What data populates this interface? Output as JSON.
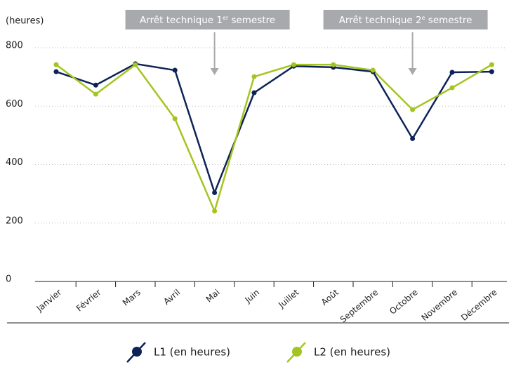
{
  "chart_data": {
    "type": "line",
    "y_label": "(heures)",
    "categories": [
      "Janvier",
      "Février",
      "Mars",
      "Avril",
      "Mai",
      "Juin",
      "Juillet",
      "Août",
      "Septembre",
      "Octobre",
      "Novembre",
      "Décembre"
    ],
    "series": [
      {
        "name": "L1 (en heures)",
        "color": "#0d2357",
        "values": [
          718,
          672,
          745,
          723,
          304,
          646,
          737,
          733,
          718,
          489,
          716,
          718
        ]
      },
      {
        "name": "L2 (en heures)",
        "color": "#a4c520",
        "values": [
          742,
          641,
          742,
          557,
          241,
          701,
          742,
          742,
          723,
          588,
          663,
          742
        ]
      }
    ],
    "ylim": [
      0,
      800
    ],
    "yticks": [
      0,
      200,
      400,
      600,
      800
    ],
    "grid": true,
    "annotations": [
      {
        "text": "Arrêt technique 1",
        "sup": "er",
        "rest": " semestre",
        "category": 4
      },
      {
        "text": "Arrêt technique 2",
        "sup": "e",
        "rest": " semestre",
        "category": 9
      }
    ]
  }
}
